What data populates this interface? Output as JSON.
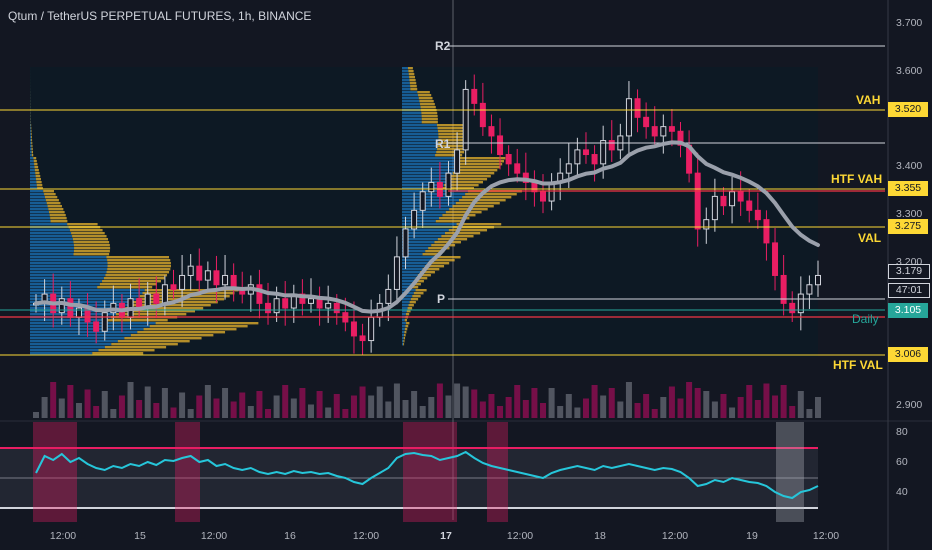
{
  "header": {
    "symbol": "Qtum / TetherUS PERPETUAL FUTURES, 1h, BINANCE"
  },
  "levels": {
    "r2": "R2",
    "r1": "R1",
    "p": "P",
    "vah": "VAH",
    "htf_vah": "HTF VAH",
    "val": "VAL",
    "daily": "Daily",
    "htf_val": "HTF VAL"
  },
  "price_tags": {
    "vah": "3.520",
    "htf_vah": "3.355",
    "val": "3.275",
    "last": "3.179",
    "countdown": "47:01",
    "daily": "3.105",
    "htf_val": "3.006"
  },
  "price_axis": [
    "3.700",
    "3.600",
    "3.500",
    "3.400",
    "3.300",
    "3.200",
    "2.900"
  ],
  "rsi_axis": [
    "80",
    "60",
    "40"
  ],
  "time_axis": [
    {
      "label": "12:00",
      "bold": false
    },
    {
      "label": "15",
      "bold": false
    },
    {
      "label": "12:00",
      "bold": false
    },
    {
      "label": "16",
      "bold": false
    },
    {
      "label": "12:00",
      "bold": false
    },
    {
      "label": "17",
      "bold": true
    },
    {
      "label": "12:00",
      "bold": false
    },
    {
      "label": "18",
      "bold": false
    },
    {
      "label": "12:00",
      "bold": false
    },
    {
      "label": "19",
      "bold": false
    },
    {
      "label": "12:00",
      "bold": false
    }
  ],
  "colors": {
    "up": "#d1d4dc",
    "down": "#e91e63",
    "vah_line": "#fdd835",
    "red_line": "#f23645",
    "daily": "#26a69a",
    "rsi": "#26c6da",
    "profile_blue": "#2196f3",
    "profile_gold": "#fbc02d"
  },
  "chart_data": {
    "type": "candlestick",
    "price_range": [
      2.88,
      3.74
    ],
    "close_prices": [
      3.12,
      3.14,
      3.1,
      3.13,
      3.09,
      3.11,
      3.08,
      3.06,
      3.1,
      3.12,
      3.09,
      3.13,
      3.11,
      3.14,
      3.12,
      3.16,
      3.15,
      3.18,
      3.2,
      3.17,
      3.19,
      3.16,
      3.18,
      3.15,
      3.14,
      3.16,
      3.12,
      3.1,
      3.13,
      3.11,
      3.14,
      3.12,
      3.13,
      3.11,
      3.12,
      3.1,
      3.08,
      3.05,
      3.04,
      3.09,
      3.12,
      3.15,
      3.22,
      3.28,
      3.32,
      3.36,
      3.38,
      3.35,
      3.4,
      3.45,
      3.58,
      3.55,
      3.5,
      3.48,
      3.44,
      3.42,
      3.4,
      3.38,
      3.36,
      3.34,
      3.38,
      3.4,
      3.42,
      3.45,
      3.44,
      3.42,
      3.47,
      3.45,
      3.48,
      3.56,
      3.52,
      3.5,
      3.48,
      3.5,
      3.49,
      3.46,
      3.4,
      3.28,
      3.3,
      3.35,
      3.33,
      3.36,
      3.34,
      3.32,
      3.3,
      3.25,
      3.18,
      3.12,
      3.1,
      3.14,
      3.16,
      3.18
    ]
  },
  "rsi_data": {
    "values": [
      55,
      72,
      68,
      74,
      66,
      70,
      64,
      60,
      58,
      62,
      60,
      64,
      62,
      66,
      63,
      68,
      67,
      70,
      72,
      66,
      68,
      62,
      64,
      60,
      58,
      60,
      56,
      54,
      56,
      54,
      57,
      55,
      56,
      54,
      55,
      52,
      50,
      46,
      44,
      50,
      55,
      60,
      70,
      74,
      75,
      73,
      72,
      68,
      70,
      72,
      76,
      70,
      65,
      62,
      60,
      58,
      56,
      54,
      52,
      50,
      55,
      58,
      60,
      62,
      60,
      58,
      62,
      60,
      62,
      64,
      62,
      60,
      58,
      60,
      59,
      56,
      50,
      42,
      44,
      48,
      46,
      50,
      48,
      46,
      45,
      42,
      36,
      32,
      30,
      36,
      38,
      42
    ]
  }
}
